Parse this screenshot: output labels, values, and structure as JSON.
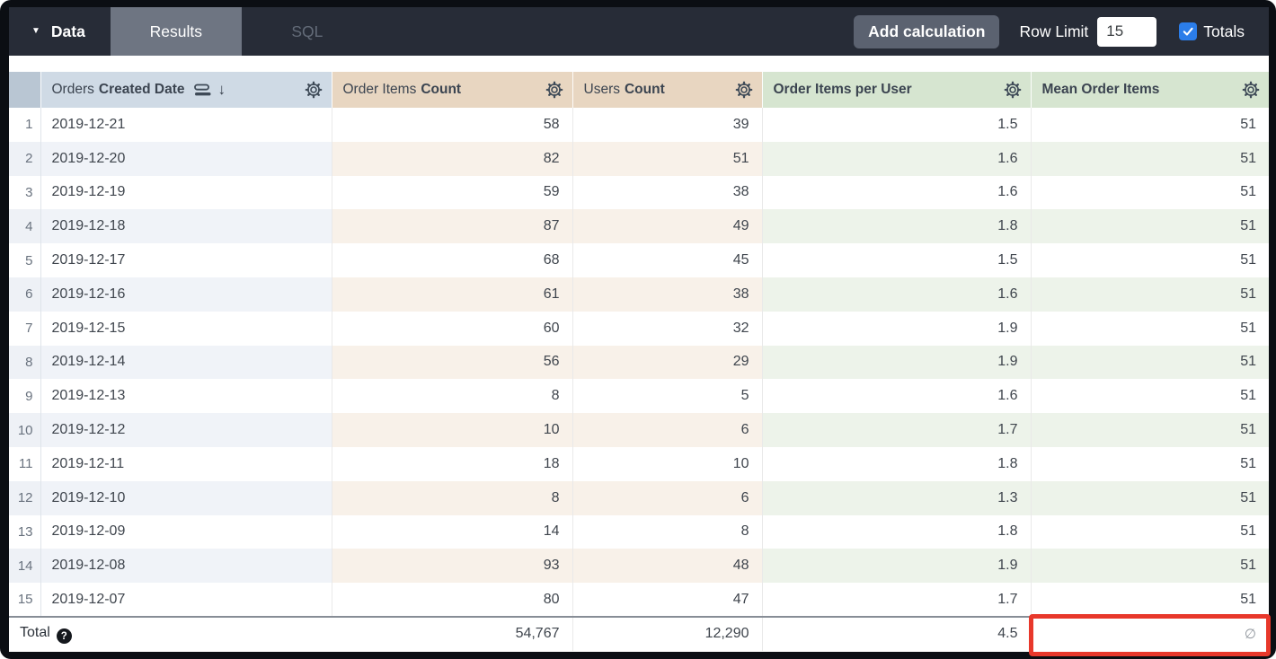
{
  "toolbar": {
    "data_label": "Data",
    "tabs": [
      {
        "label": "Results",
        "active": true
      },
      {
        "label": "SQL",
        "active": false
      }
    ],
    "add_calculation_label": "Add calculation",
    "row_limit_label": "Row Limit",
    "row_limit_value": "15",
    "totals_label": "Totals",
    "totals_checked": true
  },
  "table": {
    "columns": [
      {
        "id": "date",
        "label_prefix": "Orders",
        "label_bold": "Created Date",
        "type": "dimension",
        "sorted_desc": true,
        "header_color": "#cfdae5"
      },
      {
        "id": "order_items_count",
        "label_prefix": "Order Items",
        "label_bold": "Count",
        "type": "measure",
        "header_color": "#e8d6c1"
      },
      {
        "id": "users_count",
        "label_prefix": "Users",
        "label_bold": "Count",
        "type": "measure",
        "header_color": "#e8d6c1"
      },
      {
        "id": "order_items_per_user",
        "label_prefix": "",
        "label_bold": "Order Items per User",
        "type": "table_calculation",
        "header_color": "#d6e5d0"
      },
      {
        "id": "mean_order_items",
        "label_prefix": "",
        "label_bold": "Mean Order Items",
        "type": "table_calculation",
        "header_color": "#d6e5d0"
      }
    ],
    "rows": [
      {
        "num": "1",
        "date": "2019-12-21",
        "order_items_count": "58",
        "users_count": "39",
        "order_items_per_user": "1.5",
        "mean_order_items": "51"
      },
      {
        "num": "2",
        "date": "2019-12-20",
        "order_items_count": "82",
        "users_count": "51",
        "order_items_per_user": "1.6",
        "mean_order_items": "51"
      },
      {
        "num": "3",
        "date": "2019-12-19",
        "order_items_count": "59",
        "users_count": "38",
        "order_items_per_user": "1.6",
        "mean_order_items": "51"
      },
      {
        "num": "4",
        "date": "2019-12-18",
        "order_items_count": "87",
        "users_count": "49",
        "order_items_per_user": "1.8",
        "mean_order_items": "51"
      },
      {
        "num": "5",
        "date": "2019-12-17",
        "order_items_count": "68",
        "users_count": "45",
        "order_items_per_user": "1.5",
        "mean_order_items": "51"
      },
      {
        "num": "6",
        "date": "2019-12-16",
        "order_items_count": "61",
        "users_count": "38",
        "order_items_per_user": "1.6",
        "mean_order_items": "51"
      },
      {
        "num": "7",
        "date": "2019-12-15",
        "order_items_count": "60",
        "users_count": "32",
        "order_items_per_user": "1.9",
        "mean_order_items": "51"
      },
      {
        "num": "8",
        "date": "2019-12-14",
        "order_items_count": "56",
        "users_count": "29",
        "order_items_per_user": "1.9",
        "mean_order_items": "51"
      },
      {
        "num": "9",
        "date": "2019-12-13",
        "order_items_count": "8",
        "users_count": "5",
        "order_items_per_user": "1.6",
        "mean_order_items": "51"
      },
      {
        "num": "10",
        "date": "2019-12-12",
        "order_items_count": "10",
        "users_count": "6",
        "order_items_per_user": "1.7",
        "mean_order_items": "51"
      },
      {
        "num": "11",
        "date": "2019-12-11",
        "order_items_count": "18",
        "users_count": "10",
        "order_items_per_user": "1.8",
        "mean_order_items": "51"
      },
      {
        "num": "12",
        "date": "2019-12-10",
        "order_items_count": "8",
        "users_count": "6",
        "order_items_per_user": "1.3",
        "mean_order_items": "51"
      },
      {
        "num": "13",
        "date": "2019-12-09",
        "order_items_count": "14",
        "users_count": "8",
        "order_items_per_user": "1.8",
        "mean_order_items": "51"
      },
      {
        "num": "14",
        "date": "2019-12-08",
        "order_items_count": "93",
        "users_count": "48",
        "order_items_per_user": "1.9",
        "mean_order_items": "51"
      },
      {
        "num": "15",
        "date": "2019-12-07",
        "order_items_count": "80",
        "users_count": "47",
        "order_items_per_user": "1.7",
        "mean_order_items": "51"
      }
    ],
    "total": {
      "label": "Total",
      "order_items_count": "54,767",
      "users_count": "12,290",
      "order_items_per_user": "4.5",
      "mean_order_items": "∅"
    },
    "highlight": {
      "cell": "total.mean_order_items",
      "color": "#e8382b"
    }
  },
  "icons": {
    "caret": "caret-down-icon",
    "sort": "sort-field-icon",
    "arrow": "arrow-down-icon",
    "gear": "gear-icon",
    "help": "help-icon",
    "check": "checkbox-check-icon"
  },
  "colors": {
    "topbar_bg": "#272c37",
    "active_tab_bg": "#6e7582",
    "button_bg": "#5b6270",
    "checkbox_blue": "#2b7de9",
    "dimension_header": "#cfdae5",
    "measure_header": "#e8d6c1",
    "calc_header": "#d6e5d0",
    "highlight_red": "#e8382b"
  }
}
